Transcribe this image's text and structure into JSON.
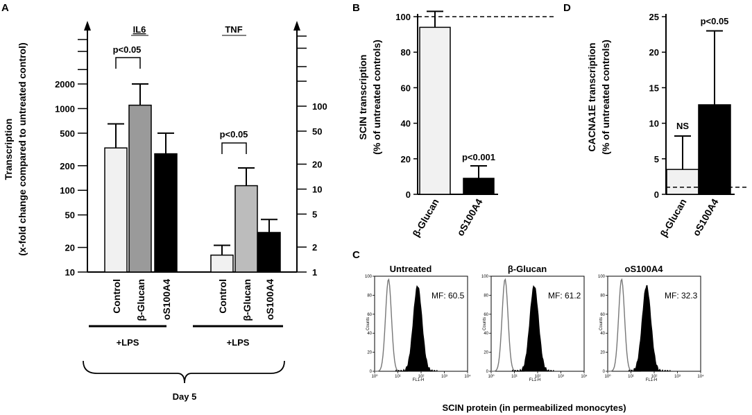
{
  "chart_data": [
    {
      "panel": "A",
      "type": "bar",
      "scale": "log",
      "ylabel_line1": "Transcription",
      "ylabel_line2": "(x-fold change compared to untreated control)",
      "left_ticks": [
        "10",
        "20",
        "50",
        "100",
        "200",
        "500",
        "1000",
        "2000"
      ],
      "left_tick_values": [
        10,
        20,
        50,
        100,
        200,
        500,
        1000,
        2000
      ],
      "right_ticks": [
        "1",
        "2",
        "5",
        "10",
        "20",
        "50",
        "100"
      ],
      "right_tick_values": [
        1,
        2,
        5,
        10,
        20,
        50,
        100
      ],
      "groups": [
        {
          "label": "IL6",
          "axis": "left",
          "categories": [
            "Control",
            "β-Glucan",
            "oS100A4"
          ],
          "values": [
            330,
            1100,
            280
          ],
          "errors": [
            650,
            2000,
            500
          ],
          "colors": [
            "#f1f1f1",
            "#9a9a9a",
            "#000000"
          ],
          "annotation": "p<0.05",
          "lps": "+LPS"
        },
        {
          "label": "TNF",
          "axis": "right",
          "categories": [
            "Control",
            "β-Glucan",
            "oS100A4"
          ],
          "values": [
            1.6,
            11,
            3.0
          ],
          "errors": [
            2.1,
            18,
            4.3
          ],
          "colors": [
            "#f1f1f1",
            "#bcbcbc",
            "#000000"
          ],
          "annotation": "p<0.05",
          "lps": "+LPS"
        }
      ],
      "footer": "Day 5"
    },
    {
      "panel": "B",
      "type": "bar",
      "ylabel_line1": "SCIN transcription",
      "ylabel_line2": "(% of untreated controls)",
      "ylim": [
        0,
        100
      ],
      "ticks": [
        0,
        20,
        40,
        60,
        80,
        100
      ],
      "tick_labels": [
        "0",
        "20",
        "40",
        "60",
        "80",
        "100"
      ],
      "categories": [
        "β-Glucan",
        "oS100A4"
      ],
      "values": [
        94,
        9
      ],
      "errors": [
        103,
        16
      ],
      "colors": [
        "#f1f1f1",
        "#000000"
      ],
      "reference_line": 100,
      "annotation": "p<0.001"
    },
    {
      "panel": "D",
      "type": "bar",
      "ylabel_line1": "CACNA1E transcription",
      "ylabel_line2": "(% of untreated controls)",
      "ylim": [
        0,
        25
      ],
      "ticks": [
        0,
        5,
        10,
        15,
        20,
        25
      ],
      "tick_labels": [
        "0",
        "5",
        "10",
        "15",
        "20",
        "25"
      ],
      "categories": [
        "β-Glucan",
        "oS100A4"
      ],
      "values": [
        3.5,
        12.6
      ],
      "errors": [
        8.2,
        23
      ],
      "colors": [
        "#f1f1f1",
        "#000000"
      ],
      "reference_line": 1,
      "annotations": [
        "NS",
        "p<0.05"
      ]
    },
    {
      "panel": "C",
      "type": "histogram",
      "xlabel": "SCIN protein (in permeabilized monocytes)",
      "y_axis_label": "Counts",
      "x_axis_label": "FL1-H",
      "y_ticks": [
        "0",
        "20",
        "40",
        "60",
        "80",
        "100"
      ],
      "x_ticks": [
        "10⁰",
        "10¹",
        "10²",
        "10³",
        "10⁴"
      ],
      "plots": [
        {
          "title": "Untreated",
          "mf": "MF: 60.5"
        },
        {
          "title": "β-Glucan",
          "mf": "MF: 61.2"
        },
        {
          "title": "oS100A4",
          "mf": "MF: 32.3"
        }
      ]
    }
  ],
  "panel_labels": {
    "a": "A",
    "b": "B",
    "c": "C",
    "d": "D"
  }
}
